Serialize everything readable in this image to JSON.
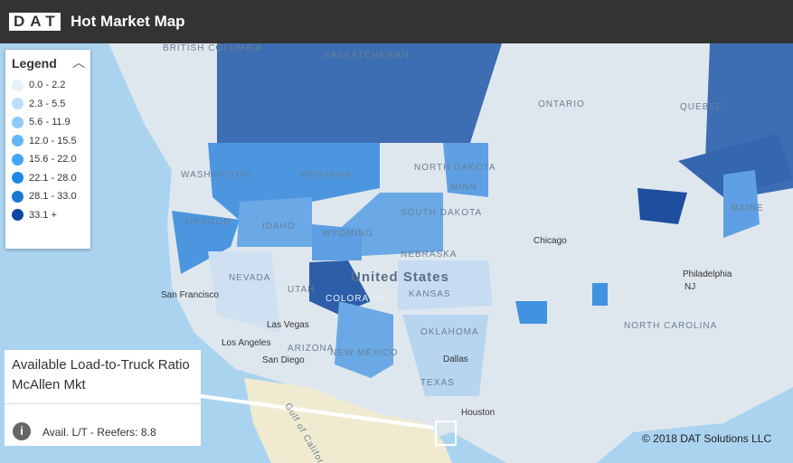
{
  "header": {
    "logo": "DAT",
    "title": "Hot Market Map"
  },
  "legend": {
    "title": "Legend",
    "items": [
      {
        "label": "0.0 - 2.2",
        "color": "#e3f2fd"
      },
      {
        "label": "2.3 - 5.5",
        "color": "#bbdefb"
      },
      {
        "label": "5.6 - 11.9",
        "color": "#90caf9"
      },
      {
        "label": "12.0 - 15.5",
        "color": "#64b5f6"
      },
      {
        "label": "15.6 - 22.0",
        "color": "#42a5f5"
      },
      {
        "label": "22.1 - 28.0",
        "color": "#1e88e5"
      },
      {
        "label": "28.1 - 33.0",
        "color": "#1976d2"
      },
      {
        "label": "33.1 +",
        "color": "#0d47a1"
      }
    ]
  },
  "popup": {
    "title": "Available Load-to-Truck Ratio",
    "market": "McAllen Mkt",
    "detail": "Avail. L/T - Reefers: 8.8"
  },
  "map": {
    "labels": [
      "BRITISH COLUMBIA",
      "SASKATCHEWAN",
      "ONTARIO",
      "QUEBEC",
      "WASHINGTON",
      "MONTANA",
      "NORTH DAKOTA",
      "MINN",
      "OREGON",
      "IDAHO",
      "SOUTH DAKOTA",
      "WYOMING",
      "NEBRASKA",
      "NEVADA",
      "UTAH",
      "COLORADO",
      "United States",
      "KANSAS",
      "San Francisco",
      "Las Vegas",
      "Los Angeles",
      "ARIZONA",
      "NEW MEXICO",
      "OKLAHOMA",
      "Dallas",
      "TEXAS",
      "Houston",
      "San Diego",
      "Chicago",
      "Philadelphia",
      "MAINE",
      "NJ",
      "NORTH CAROLINA",
      "Gulf of California"
    ],
    "copyright": "© 2018 DAT Solutions LLC"
  }
}
